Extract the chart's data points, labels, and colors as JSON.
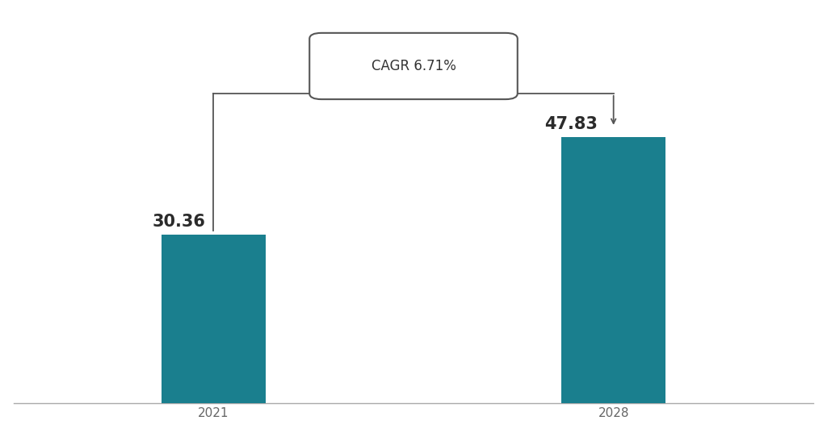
{
  "categories": [
    "2021",
    "2028"
  ],
  "values": [
    30.36,
    47.83
  ],
  "bar_color": "#1a7f8e",
  "bar_width": 0.13,
  "value_labels": [
    "30.36",
    "47.83"
  ],
  "value_fontsize": 15,
  "value_fontweight": "bold",
  "value_color": "#2b2b2b",
  "xlabel_fontsize": 11,
  "xlabel_color": "#666666",
  "cagr_text": "CAGR 6.71%",
  "cagr_fontsize": 12,
  "background_color": "#ffffff",
  "ylim": [
    0,
    70
  ],
  "xlim": [
    0,
    1
  ],
  "x_positions": [
    0.25,
    0.75
  ],
  "figsize": [
    10.24,
    5.37
  ]
}
